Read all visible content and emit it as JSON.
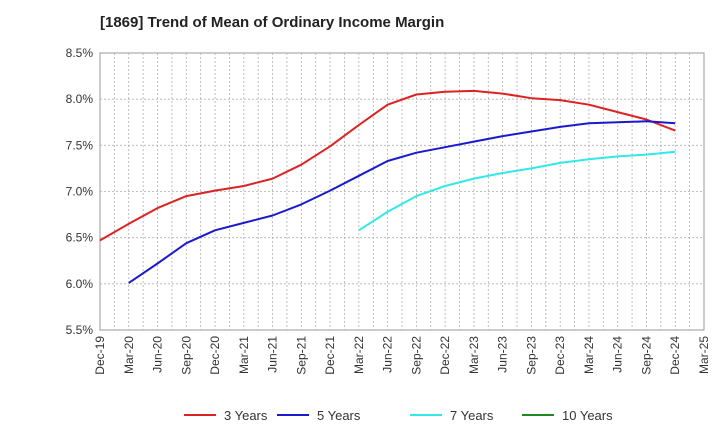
{
  "chart_data": {
    "type": "line",
    "title": "[1869]  Trend of Mean of Ordinary Income Margin",
    "xlabel": "",
    "ylabel": "",
    "ylim": [
      5.5,
      8.5
    ],
    "y_ticks": [
      "8.5%",
      "8.0%",
      "7.5%",
      "7.0%",
      "6.5%",
      "6.0%",
      "5.5%"
    ],
    "y_tick_values": [
      8.5,
      8.0,
      7.5,
      7.0,
      6.5,
      6.0,
      5.5
    ],
    "x_ticks": [
      "Dec-19",
      "Mar-20",
      "Jun-20",
      "Sep-20",
      "Dec-20",
      "Mar-21",
      "Jun-21",
      "Sep-21",
      "Dec-21",
      "Mar-22",
      "Jun-22",
      "Sep-22",
      "Dec-22",
      "Mar-23",
      "Jun-23",
      "Sep-23",
      "Dec-23",
      "Mar-24",
      "Jun-24",
      "Sep-24",
      "Dec-24",
      "Mar-25"
    ],
    "grid": true,
    "legend_position": "bottom",
    "series": [
      {
        "name": "3 Years",
        "color": "#dd2222",
        "x": [
          "Dec-19",
          "Mar-20",
          "Jun-20",
          "Sep-20",
          "Dec-20",
          "Mar-21",
          "Jun-21",
          "Sep-21",
          "Dec-21",
          "Mar-22",
          "Jun-22",
          "Sep-22",
          "Dec-22",
          "Mar-23",
          "Jun-23",
          "Sep-23",
          "Dec-23",
          "Mar-24",
          "Jun-24",
          "Sep-24",
          "Dec-24"
        ],
        "values": [
          6.47,
          6.65,
          6.82,
          6.95,
          7.01,
          7.06,
          7.14,
          7.29,
          7.49,
          7.72,
          7.94,
          8.05,
          8.08,
          8.09,
          8.06,
          8.01,
          7.99,
          7.94,
          7.86,
          7.78,
          7.66
        ]
      },
      {
        "name": "5 Years",
        "color": "#1a1acc",
        "x": [
          "Mar-20",
          "Jun-20",
          "Sep-20",
          "Dec-20",
          "Mar-21",
          "Jun-21",
          "Sep-21",
          "Dec-21",
          "Mar-22",
          "Jun-22",
          "Sep-22",
          "Dec-22",
          "Mar-23",
          "Jun-23",
          "Sep-23",
          "Dec-23",
          "Mar-24",
          "Jun-24",
          "Sep-24",
          "Dec-24"
        ],
        "values": [
          6.01,
          6.22,
          6.44,
          6.58,
          6.66,
          6.74,
          6.86,
          7.01,
          7.17,
          7.33,
          7.42,
          7.48,
          7.54,
          7.6,
          7.65,
          7.7,
          7.74,
          7.75,
          7.76,
          7.74
        ]
      },
      {
        "name": "7 Years",
        "color": "#33e8e8",
        "x": [
          "Mar-22",
          "Jun-22",
          "Sep-22",
          "Dec-22",
          "Mar-23",
          "Jun-23",
          "Sep-23",
          "Dec-23",
          "Mar-24",
          "Jun-24",
          "Sep-24",
          "Dec-24"
        ],
        "values": [
          6.58,
          6.78,
          6.95,
          7.06,
          7.14,
          7.2,
          7.25,
          7.31,
          7.35,
          7.38,
          7.4,
          7.43
        ]
      },
      {
        "name": "10 Years",
        "color": "#228822",
        "x": [],
        "values": []
      }
    ]
  }
}
